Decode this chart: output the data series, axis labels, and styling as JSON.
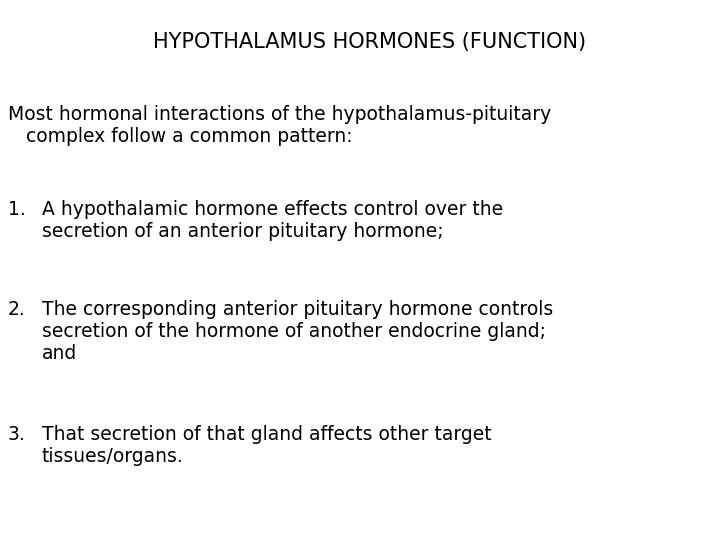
{
  "title": "HYPOTHALAMUS HORMONES (FUNCTION)",
  "background_color": "#ffffff",
  "text_color": "#000000",
  "title_fontsize": 15,
  "body_fontsize": 13.5,
  "intro_line1": "Most hormonal interactions of the hypothalamus-pituitary",
  "intro_line2": "   complex follow a common pattern:",
  "items": [
    {
      "num": "1.",
      "line1": "A hypothalamic hormone effects control over the",
      "line2": "secretion of an anterior pituitary hormone;"
    },
    {
      "num": "2.",
      "line1": "The corresponding anterior pituitary hormone controls",
      "line2": "secretion of the hormone of another endocrine gland;",
      "line3": "and"
    },
    {
      "num": "3.",
      "line1": "That secretion of that gland affects other target",
      "line2": "tissues/organs."
    }
  ]
}
